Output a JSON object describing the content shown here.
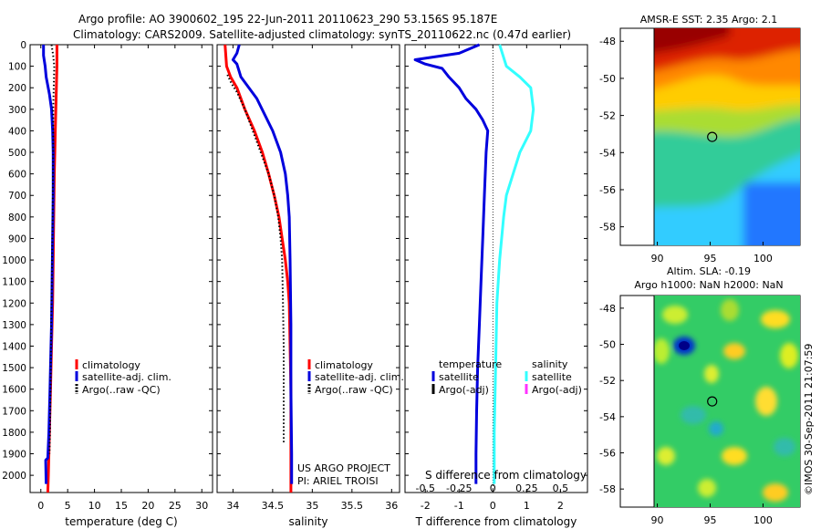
{
  "header": {
    "line1": "Argo profile: AO 3900602_195 22-Jun-2011 20110623_290 53.156S 95.187E",
    "line2": "Climatology: CARS2009. Satellite-adjusted climatology: synTS_20110622.nc (0.47d earlier)"
  },
  "colors": {
    "climatology": "#ff0000",
    "satellite": "#0000dd",
    "argo": "#000000",
    "satellite_salinity": "#33ffff",
    "argo_salinity": "#ff33ff"
  },
  "legend_profile": {
    "climatology": "climatology",
    "satellite": "satellite-adj. clim.",
    "argo": "Argo(..raw -QC)"
  },
  "legend_diff": {
    "temp_title": "temperature",
    "sal_title": "salinity",
    "satellite": "satellite",
    "argo": "Argo(-adj)"
  },
  "project": {
    "line1": "US ARGO PROJECT",
    "line2": "PI: ARIEL TROISI"
  },
  "map_sst": {
    "title": "AMSR-E SST: 2.35 Argo: 2.1",
    "x_ticks": [
      "90",
      "95",
      "100"
    ],
    "y_ticks": [
      "-48",
      "-50",
      "-52",
      "-54",
      "-56",
      "-58"
    ]
  },
  "map_sla": {
    "title1": "Altim. SLA: -0.19",
    "title2": "Argo h1000: NaN h2000: NaN",
    "x_ticks": [
      "90",
      "95",
      "100"
    ],
    "y_ticks": [
      "-48",
      "-50",
      "-52",
      "-54",
      "-56",
      "-58"
    ]
  },
  "watermark": "©IMOS 30-Sep-2011 21:07:59",
  "chart_data": [
    {
      "type": "line",
      "panel": "temperature",
      "xlabel": "temperature (deg C)",
      "ylabel": "",
      "xlim": [
        -2,
        32
      ],
      "ylim": [
        2080,
        0
      ],
      "x_ticks": [
        0,
        5,
        10,
        15,
        20,
        25,
        30
      ],
      "x_tick_labels": [
        "0",
        "5",
        "10",
        "15",
        "20",
        "25",
        "30"
      ],
      "y_ticks": [
        0,
        100,
        200,
        300,
        400,
        500,
        600,
        700,
        800,
        900,
        1000,
        1100,
        1200,
        1300,
        1400,
        1500,
        1600,
        1700,
        1800,
        1900,
        2000
      ],
      "y_tick_labels": [
        "0",
        "100",
        "200",
        "300",
        "400",
        "500",
        "600",
        "700",
        "800",
        "900",
        "1000",
        "1100",
        "1200",
        "1300",
        "1400",
        "1500",
        "1600",
        "1700",
        "1800",
        "1900",
        "2000"
      ],
      "series": [
        {
          "name": "climatology",
          "style": "solid",
          "color": "#ff0000",
          "points": [
            [
              3.0,
              0
            ],
            [
              3.0,
              50
            ],
            [
              3.0,
              100
            ],
            [
              2.9,
              200
            ],
            [
              2.8,
              300
            ],
            [
              2.7,
              400
            ],
            [
              2.6,
              500
            ],
            [
              2.5,
              600
            ],
            [
              2.4,
              800
            ],
            [
              2.3,
              1000
            ],
            [
              2.2,
              1200
            ],
            [
              2.0,
              1400
            ],
            [
              1.8,
              1600
            ],
            [
              1.6,
              1800
            ],
            [
              1.4,
              2000
            ],
            [
              1.3,
              2080
            ]
          ]
        },
        {
          "name": "satellite-adj. clim.",
          "style": "solid",
          "color": "#0000dd",
          "points": [
            [
              0.5,
              0
            ],
            [
              0.5,
              50
            ],
            [
              0.8,
              100
            ],
            [
              1.0,
              150
            ],
            [
              1.6,
              230
            ],
            [
              2.0,
              300
            ],
            [
              2.2,
              400
            ],
            [
              2.3,
              500
            ],
            [
              2.3,
              700
            ],
            [
              2.2,
              900
            ],
            [
              2.1,
              1100
            ],
            [
              2.0,
              1300
            ],
            [
              1.9,
              1400
            ],
            [
              1.7,
              1600
            ],
            [
              1.5,
              1800
            ],
            [
              1.3,
              1920
            ],
            [
              0.9,
              1930
            ],
            [
              1.0,
              2040
            ]
          ]
        },
        {
          "name": "Argo(..raw -QC)",
          "style": "dotted",
          "color": "#000000",
          "points": [
            [
              2.0,
              0
            ],
            [
              2.3,
              50
            ],
            [
              2.5,
              100
            ],
            [
              2.4,
              200
            ],
            [
              2.3,
              300
            ],
            [
              2.3,
              500
            ],
            [
              2.2,
              800
            ],
            [
              2.1,
              1000
            ],
            [
              2.0,
              1200
            ],
            [
              1.9,
              1400
            ],
            [
              1.8,
              1600
            ],
            [
              1.7,
              1800
            ],
            [
              1.6,
              1900
            ]
          ]
        }
      ]
    },
    {
      "type": "line",
      "panel": "salinity",
      "xlabel": "salinity",
      "ylabel": "",
      "xlim": [
        33.8,
        36.1
      ],
      "ylim": [
        2080,
        0
      ],
      "x_ticks": [
        34,
        34.5,
        35,
        35.5,
        36
      ],
      "x_tick_labels": [
        "34",
        "34.5",
        "35",
        "35.5",
        "36"
      ],
      "series": [
        {
          "name": "climatology",
          "style": "solid",
          "color": "#ff0000",
          "points": [
            [
              33.9,
              0
            ],
            [
              33.92,
              100
            ],
            [
              33.97,
              150
            ],
            [
              34.05,
              200
            ],
            [
              34.15,
              300
            ],
            [
              34.27,
              400
            ],
            [
              34.37,
              500
            ],
            [
              34.45,
              600
            ],
            [
              34.52,
              700
            ],
            [
              34.58,
              800
            ],
            [
              34.62,
              900
            ],
            [
              34.66,
              1000
            ],
            [
              34.69,
              1100
            ],
            [
              34.71,
              1200
            ],
            [
              34.72,
              1400
            ],
            [
              34.73,
              1600
            ],
            [
              34.73,
              2080
            ]
          ]
        },
        {
          "name": "satellite-adj. clim.",
          "style": "solid",
          "color": "#0000dd",
          "points": [
            [
              34.08,
              0
            ],
            [
              34.05,
              40
            ],
            [
              34.0,
              70
            ],
            [
              34.05,
              90
            ],
            [
              34.1,
              150
            ],
            [
              34.3,
              250
            ],
            [
              34.5,
              400
            ],
            [
              34.6,
              500
            ],
            [
              34.66,
              600
            ],
            [
              34.69,
              700
            ],
            [
              34.71,
              800
            ],
            [
              34.72,
              1000
            ],
            [
              34.73,
              1300
            ],
            [
              34.73,
              1600
            ],
            [
              34.74,
              1900
            ],
            [
              34.74,
              2040
            ]
          ]
        },
        {
          "name": "Argo(..raw -QC)",
          "style": "dotted",
          "color": "#000000",
          "points": [
            [
              33.93,
              140
            ],
            [
              33.98,
              180
            ],
            [
              34.05,
              220
            ],
            [
              34.15,
              300
            ],
            [
              34.25,
              400
            ],
            [
              34.35,
              500
            ],
            [
              34.45,
              600
            ],
            [
              34.52,
              700
            ],
            [
              34.57,
              800
            ],
            [
              34.6,
              900
            ],
            [
              34.62,
              1000
            ],
            [
              34.63,
              1200
            ],
            [
              34.64,
              1400
            ],
            [
              34.64,
              1600
            ],
            [
              34.64,
              1800
            ],
            [
              34.64,
              1850
            ]
          ]
        }
      ]
    },
    {
      "type": "line",
      "panel": "difference",
      "xlabel": "T difference from climatology",
      "x2label": "S difference from climatology",
      "xlim": [
        -2.6,
        2.8
      ],
      "x2lim": [
        -0.65,
        0.7
      ],
      "ylim": [
        2080,
        0
      ],
      "x_ticks": [
        -2,
        -1,
        0,
        1,
        2
      ],
      "x_tick_labels": [
        "-2",
        "-1",
        "0",
        "1",
        "2"
      ],
      "x2_ticks": [
        -0.5,
        -0.25,
        0,
        0.25,
        0.5
      ],
      "x2_tick_labels": [
        "-0.5",
        "-0.25",
        "0",
        "0.25",
        "0.5"
      ],
      "series": [
        {
          "name": "temperature satellite",
          "axis": "T",
          "style": "solid",
          "color": "#0000dd",
          "points": [
            [
              -0.4,
              0
            ],
            [
              -1.0,
              40
            ],
            [
              -2.3,
              70
            ],
            [
              -2.0,
              90
            ],
            [
              -1.5,
              110
            ],
            [
              -1.3,
              150
            ],
            [
              -1.0,
              200
            ],
            [
              -0.8,
              250
            ],
            [
              -0.5,
              300
            ],
            [
              -0.3,
              350
            ],
            [
              -0.15,
              400
            ],
            [
              -0.2,
              500
            ],
            [
              -0.25,
              700
            ],
            [
              -0.3,
              900
            ],
            [
              -0.35,
              1100
            ],
            [
              -0.4,
              1300
            ],
            [
              -0.45,
              1500
            ],
            [
              -0.48,
              1700
            ],
            [
              -0.5,
              1900
            ],
            [
              -0.5,
              2040
            ]
          ]
        },
        {
          "name": "salinity satellite",
          "axis": "S",
          "style": "solid",
          "color": "#33ffff",
          "points": [
            [
              0.05,
              0
            ],
            [
              0.1,
              100
            ],
            [
              0.2,
              150
            ],
            [
              0.28,
              200
            ],
            [
              0.3,
              300
            ],
            [
              0.28,
              400
            ],
            [
              0.2,
              500
            ],
            [
              0.15,
              600
            ],
            [
              0.1,
              700
            ],
            [
              0.08,
              800
            ],
            [
              0.05,
              1000
            ],
            [
              0.03,
              1200
            ],
            [
              0.02,
              1500
            ],
            [
              0.01,
              1800
            ],
            [
              0.01,
              2040
            ]
          ]
        }
      ]
    },
    {
      "type": "heatmap",
      "panel": "sst_map",
      "title": "AMSR-E SST: 2.35 Argo: 2.1",
      "xlim": [
        86.5,
        103.5
      ],
      "ylim": [
        -59,
        -47.3
      ],
      "x_ticks": [
        90,
        95,
        100
      ],
      "y_ticks": [
        -48,
        -50,
        -52,
        -54,
        -56,
        -58
      ],
      "marker": {
        "lon": 95.187,
        "lat": -53.156
      }
    },
    {
      "type": "heatmap",
      "panel": "sla_map",
      "title": "Altim. SLA: -0.19",
      "xlim": [
        86.5,
        103.5
      ],
      "ylim": [
        -59,
        -47.3
      ],
      "x_ticks": [
        90,
        95,
        100
      ],
      "y_ticks": [
        -48,
        -50,
        -52,
        -54,
        -56,
        -58
      ],
      "marker": {
        "lon": 95.187,
        "lat": -53.156
      }
    }
  ]
}
